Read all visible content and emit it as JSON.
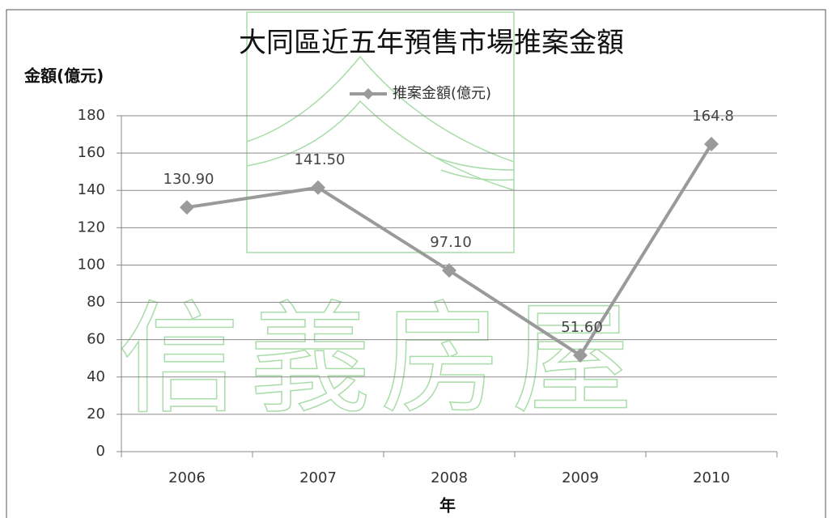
{
  "chart_data": {
    "type": "line",
    "title": "大同區近五年預售市場推案金額",
    "y_label": "金額(億元)",
    "x_label": "年",
    "watermark": "信義房屋",
    "categories": [
      "2006",
      "2007",
      "2008",
      "2009",
      "2010"
    ],
    "series": [
      {
        "name": "推案金額(億元)",
        "color": "#9a9a9a",
        "values": [
          130.9,
          141.5,
          97.1,
          51.6,
          164.8
        ],
        "value_labels": [
          "130.90",
          "141.50",
          "97.10",
          "51.60",
          "164.8"
        ]
      }
    ],
    "ylim": [
      0,
      180
    ],
    "yticks": [
      0,
      20,
      40,
      60,
      80,
      100,
      120,
      140,
      160,
      180
    ],
    "grid": true,
    "legend": "top"
  }
}
